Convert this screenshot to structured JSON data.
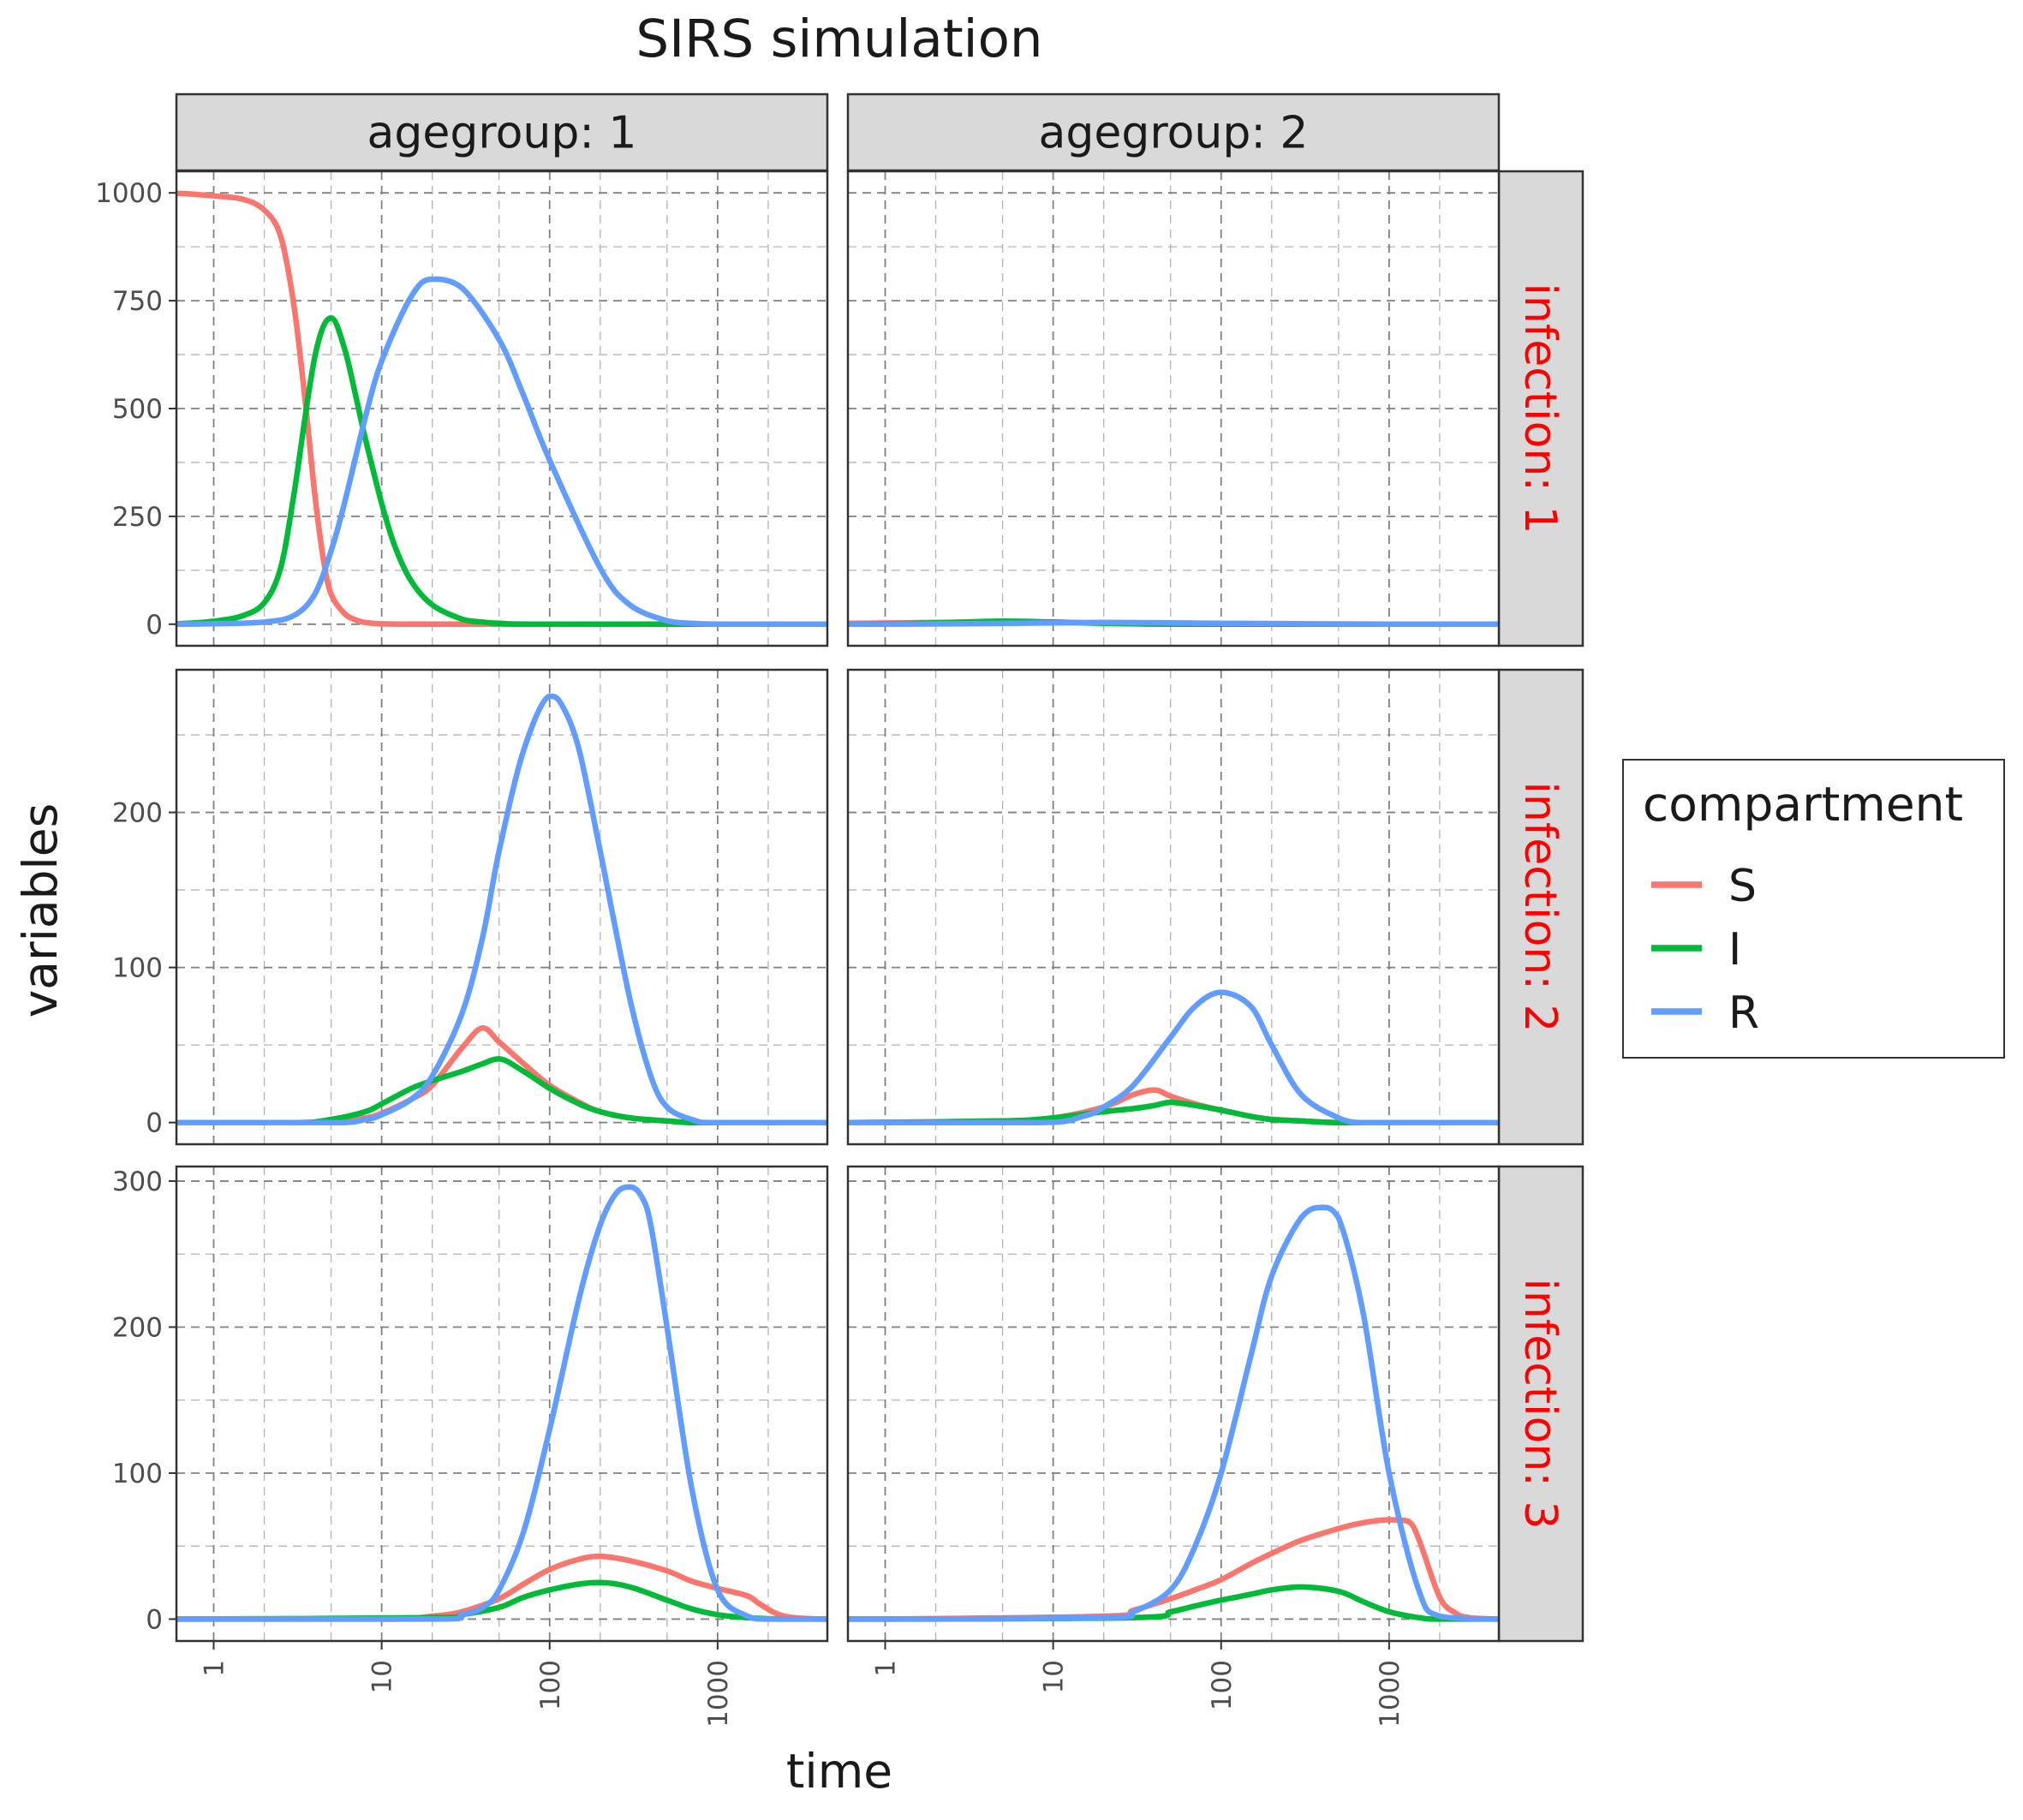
{
  "chart_data": {
    "type": "line",
    "title": "SIRS simulation",
    "xlabel": "time",
    "ylabel": "variables",
    "x_scale": "log10",
    "xlim": [
      0.6,
      4500
    ],
    "x_ticks": [
      1,
      10,
      100,
      1000
    ],
    "x_tick_labels": [
      "1",
      "10",
      "100",
      "1000"
    ],
    "grid": true,
    "legend": {
      "title": "compartment",
      "placement": "right",
      "entries": [
        {
          "name": "S",
          "color": "#F8766D"
        },
        {
          "name": "I",
          "color": "#00BA38"
        },
        {
          "name": "R",
          "color": "#619CFF"
        }
      ]
    },
    "col_strips": [
      "agegroup: 1",
      "agegroup: 2"
    ],
    "row_strips": [
      "infection: 1",
      "infection: 2",
      "infection: 3"
    ],
    "strip_text_colors": {
      "col": "#1a1a1a",
      "row": "#ff0000"
    },
    "rows": [
      {
        "ylim": [
          -50,
          1050
        ],
        "y_ticks": [
          0,
          250,
          500,
          750,
          1000
        ],
        "y_tick_labels": [
          "0",
          "250",
          "500",
          "750",
          "1000"
        ],
        "panels": [
          {
            "series": [
              {
                "name": "S",
                "x": [
                  0.6,
                  1,
                  1.5,
                  2,
                  2.5,
                  3,
                  3.5,
                  4,
                  4.5,
                  5,
                  6,
                  7,
                  8,
                  10,
                  15,
                  20,
                  100,
                  4500
                ],
                "y": [
                  999,
                  993,
                  985,
                  960,
                  900,
                  740,
                  520,
                  300,
                  150,
                  70,
                  25,
                  10,
                  4,
                  1,
                  0,
                  0,
                  0,
                  0
                ]
              },
              {
                "name": "I",
                "x": [
                  0.6,
                  1,
                  1.5,
                  2,
                  2.5,
                  3,
                  4,
                  5,
                  6,
                  7,
                  8,
                  10,
                  12,
                  15,
                  20,
                  30,
                  40,
                  50,
                  100,
                  4500
                ],
                "y": [
                  1,
                  7,
                  20,
                  50,
                  130,
                  300,
                  620,
                  710,
                  640,
                  530,
                  430,
                  280,
                  180,
                  100,
                  45,
                  12,
                  5,
                  2,
                  0,
                  0
                ]
              },
              {
                "name": "R",
                "x": [
                  0.6,
                  1,
                  2,
                  3,
                  4,
                  5,
                  6,
                  8,
                  10,
                  15,
                  20,
                  30,
                  50,
                  70,
                  100,
                  200,
                  300,
                  500,
                  700,
                  1000,
                  2000,
                  4500
                ],
                "y": [
                  0,
                  1,
                  5,
                  20,
                  70,
                  170,
                  280,
                  480,
                  610,
                  760,
                  800,
                  780,
                  660,
                  530,
                  380,
                  130,
                  45,
                  8,
                  2,
                  0,
                  0,
                  0
                ]
              }
            ]
          },
          {
            "series": [
              {
                "name": "S",
                "x": [
                  0.6,
                  2,
                  4,
                  6,
                  10,
                  30,
                  100,
                  4500
                ],
                "y": [
                  2,
                  4,
                  5,
                  5,
                  4,
                  2,
                  0,
                  0
                ]
              },
              {
                "name": "I",
                "x": [
                  0.6,
                  2,
                  5,
                  10,
                  20,
                  50,
                  100,
                  4500
                ],
                "y": [
                  0,
                  3,
                  7,
                  5,
                  2,
                  0,
                  0,
                  0
                ]
              },
              {
                "name": "R",
                "x": [
                  0.6,
                  3,
                  10,
                  20,
                  50,
                  100,
                  300,
                  1000,
                  4500
                ],
                "y": [
                  0,
                  1,
                  3,
                  4,
                  3,
                  2,
                  1,
                  0,
                  0
                ]
              }
            ]
          }
        ]
      },
      {
        "ylim": [
          -14,
          292
        ],
        "y_ticks": [
          0,
          100,
          200
        ],
        "y_tick_labels": [
          "0",
          "100",
          "200"
        ],
        "panels": [
          {
            "series": [
              {
                "name": "S",
                "x": [
                  0.6,
                  3,
                  5,
                  8,
                  10,
                  15,
                  20,
                  30,
                  40,
                  50,
                  70,
                  100,
                  150,
                  200,
                  300,
                  500,
                  700,
                  1000,
                  4500
                ],
                "y": [
                  0,
                  0,
                  1,
                  3,
                  6,
                  15,
                  24,
                  48,
                  61,
                  52,
                  38,
                  24,
                  13,
                  7,
                  3,
                  1,
                  0,
                  0,
                  0
                ]
              },
              {
                "name": "I",
                "x": [
                  0.6,
                  3,
                  5,
                  8,
                  10,
                  15,
                  20,
                  30,
                  40,
                  50,
                  70,
                  100,
                  150,
                  200,
                  300,
                  500,
                  700,
                  1000,
                  4500
                ],
                "y": [
                  0,
                  0,
                  2,
                  7,
                  12,
                  22,
                  27,
                  33,
                  38,
                  41,
                  33,
                  22,
                  12,
                  7,
                  3,
                  1,
                  0,
                  0,
                  0
                ]
              },
              {
                "name": "R",
                "x": [
                  0.6,
                  5,
                  8,
                  10,
                  15,
                  20,
                  30,
                  40,
                  50,
                  70,
                  100,
                  120,
                  150,
                  200,
                  300,
                  400,
                  500,
                  700,
                  1000,
                  4500
                ],
                "y": [
                  0,
                  0,
                  2,
                  5,
                  15,
                  30,
                  70,
                  120,
                  175,
                  240,
                  275,
                  268,
                  240,
                  175,
                  80,
                  30,
                  10,
                  2,
                  0,
                  0
                ]
              }
            ]
          },
          {
            "series": [
              {
                "name": "S",
                "x": [
                  0.6,
                  5,
                  10,
                  20,
                  30,
                  40,
                  50,
                  70,
                  100,
                  150,
                  200,
                  300,
                  500,
                  1000,
                  4500
                ],
                "y": [
                  0,
                  1,
                  3,
                  10,
                  18,
                  21,
                  17,
                  12,
                  8,
                  4,
                  2,
                  1,
                  0,
                  0,
                  0
                ]
              },
              {
                "name": "I",
                "x": [
                  0.6,
                  5,
                  10,
                  20,
                  30,
                  40,
                  50,
                  70,
                  100,
                  150,
                  200,
                  300,
                  500,
                  1000,
                  4500
                ],
                "y": [
                  0,
                  1,
                  3,
                  7,
                  9,
                  11,
                  13,
                  11,
                  8,
                  4,
                  2,
                  1,
                  0,
                  0,
                  0
                ]
              },
              {
                "name": "R",
                "x": [
                  0.6,
                  8,
                  15,
                  20,
                  30,
                  50,
                  70,
                  100,
                  150,
                  200,
                  300,
                  500,
                  700,
                  1000,
                  4500
                ],
                "y": [
                  0,
                  0,
                  4,
                  10,
                  24,
                  55,
                  75,
                  84,
                  75,
                  50,
                  18,
                  3,
                  0,
                  0,
                  0
                ]
              }
            ]
          }
        ]
      },
      {
        "ylim": [
          -15,
          310
        ],
        "y_ticks": [
          0,
          100,
          200,
          300
        ],
        "y_tick_labels": [
          "0",
          "100",
          "200",
          "300"
        ],
        "panels": [
          {
            "series": [
              {
                "name": "S",
                "x": [
                  0.6,
                  10,
                  20,
                  30,
                  50,
                  70,
                  100,
                  150,
                  200,
                  300,
                  500,
                  700,
                  1000,
                  1500,
                  1800,
                  2500,
                  4500
                ],
                "y": [
                  0,
                  0,
                  2,
                  5,
                  14,
                  24,
                  34,
                  41,
                  43,
                  40,
                  33,
                  26,
                  21,
                  16,
                  10,
                  2,
                  0
                ]
              },
              {
                "name": "I",
                "x": [
                  0.6,
                  20,
                  30,
                  50,
                  70,
                  100,
                  150,
                  200,
                  300,
                  500,
                  700,
                  1000,
                  1500,
                  2500,
                  4500
                ],
                "y": [
                  0,
                  1,
                  3,
                  8,
                  15,
                  20,
                  24,
                  25,
                  22,
                  13,
                  7,
                  3,
                  1,
                  0,
                  0
                ]
              },
              {
                "name": "R",
                "x": [
                  0.6,
                  20,
                  30,
                  40,
                  50,
                  70,
                  100,
                  150,
                  200,
                  250,
                  300,
                  350,
                  400,
                  500,
                  700,
                  1000,
                  1500,
                  2000,
                  4500
                ],
                "y": [
                  0,
                  0,
                  3,
                  8,
                  20,
                  60,
                  130,
                  220,
                  270,
                  292,
                  296,
                  290,
                  270,
                  200,
                  90,
                  20,
                  2,
                  0,
                  0
                ]
              }
            ]
          },
          {
            "series": [
              {
                "name": "S",
                "x": [
                  0.6,
                  20,
                  30,
                  50,
                  70,
                  100,
                  150,
                  200,
                  300,
                  500,
                  700,
                  1000,
                  1300,
                  1500,
                  2000,
                  2500,
                  3000,
                  4500
                ],
                "y": [
                  0,
                  2,
                  6,
                  14,
                  20,
                  27,
                  38,
                  45,
                  54,
                  62,
                  66,
                  68,
                  67,
                  55,
                  15,
                  4,
                  1,
                  0
                ]
              },
              {
                "name": "I",
                "x": [
                  0.6,
                  30,
                  50,
                  70,
                  100,
                  150,
                  200,
                  300,
                  500,
                  700,
                  1000,
                  1500,
                  2000,
                  4500
                ],
                "y": [
                  0,
                  1,
                  5,
                  9,
                  13,
                  17,
                  20,
                  22,
                  19,
                  12,
                  5,
                  1,
                  0,
                  0
                ]
              },
              {
                "name": "R",
                "x": [
                  0.6,
                  20,
                  30,
                  50,
                  70,
                  100,
                  150,
                  200,
                  300,
                  400,
                  500,
                  700,
                  1000,
                  1500,
                  2000,
                  4500
                ],
                "y": [
                  0,
                  1,
                  5,
                  20,
                  50,
                  100,
                  180,
                  235,
                  275,
                  282,
                  275,
                  210,
                  100,
                  20,
                  2,
                  0
                ]
              }
            ]
          }
        ]
      }
    ]
  }
}
